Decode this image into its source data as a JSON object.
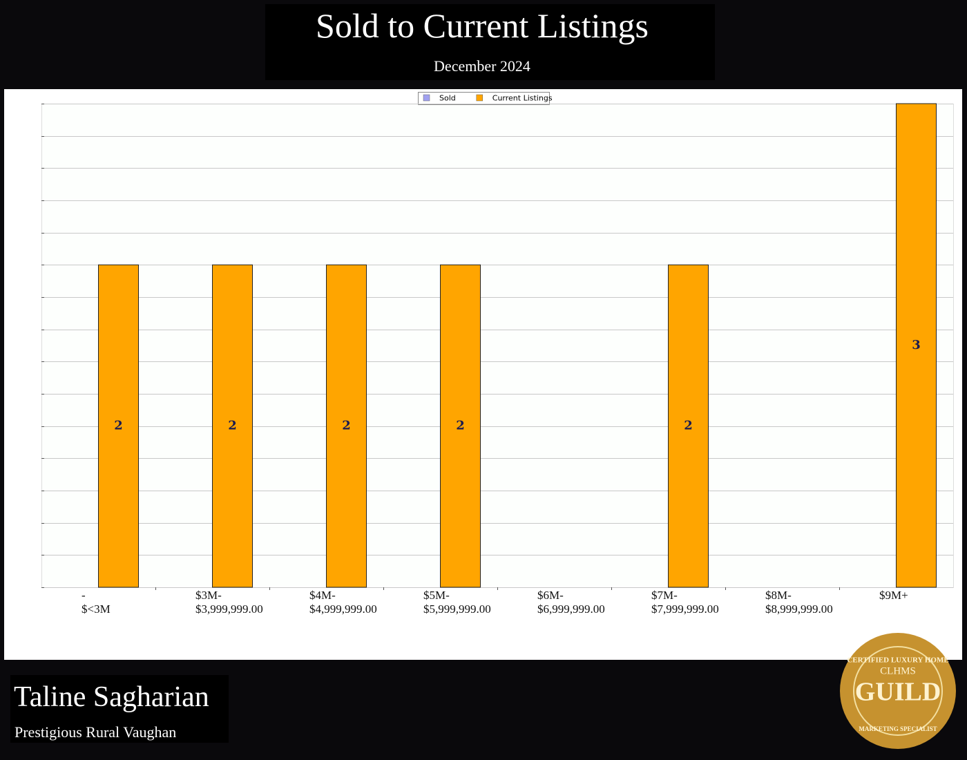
{
  "chart_data": {
    "type": "bar",
    "title": "Sold to Current Listings",
    "subtitle": "December 2024",
    "categories": [
      "-\n$<3M",
      "$3M-\n$3,999,999.00",
      "$4M-\n$4,999,999.00",
      "$5M-\n$5,999,999.00",
      "$6M-\n$6,999,999.00",
      "$7M-\n$7,999,999.00",
      "$8M-\n$8,999,999.00",
      "$9M+"
    ],
    "series": [
      {
        "name": "Sold",
        "color": "#a0a0f0",
        "values": [
          0,
          0,
          0,
          0,
          0,
          0,
          0,
          0
        ]
      },
      {
        "name": "Current Listings",
        "color": "#ffa500",
        "values": [
          2,
          2,
          2,
          2,
          0,
          2,
          0,
          3
        ]
      }
    ],
    "ylim": [
      0,
      3
    ],
    "yticks": [
      0,
      0.2,
      0.4,
      0.6,
      0.8,
      1,
      1.2,
      1.4,
      1.6,
      1.8,
      2,
      2.2,
      2.4,
      2.6,
      2.8,
      3
    ],
    "show_ytick_labels": false,
    "grid": true,
    "legend": "top"
  },
  "footer": {
    "name": "Taline Sagharian",
    "region": "Prestigious Rural Vaughan"
  },
  "badge": {
    "top": "CERTIFIED LUXURY HOME",
    "brand": "CLHMS",
    "word": "GUILD",
    "bottom": "MARKETING SPECIALIST"
  }
}
